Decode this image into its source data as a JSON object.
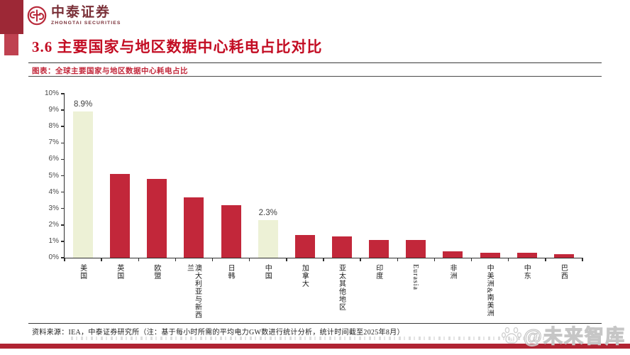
{
  "brand": {
    "name_cn": "中泰证券",
    "name_en": "ZHONGTAI SECURITIES",
    "logo_icon": "zhongtai-monogram-icon"
  },
  "header": {
    "title": "3.6 主要国家与地区数据中心耗电占比对比"
  },
  "chart_caption": "图表：全球主要国家与地区数据中心耗电占比",
  "chart_data": {
    "type": "bar",
    "title": "全球主要国家与地区数据中心耗电占比",
    "categories": [
      "美国",
      "英国",
      "欧盟",
      "澳大利亚与新西兰",
      "日韩",
      "中国",
      "加拿大",
      "亚太其他地区",
      "印度",
      "Eurasia",
      "非洲",
      "中美洲&南美洲",
      "中东",
      "巴西"
    ],
    "values": [
      8.9,
      5.1,
      4.8,
      3.7,
      3.2,
      2.3,
      1.4,
      1.3,
      1.1,
      1.1,
      0.4,
      0.3,
      0.3,
      0.2
    ],
    "unit": "%",
    "value_labels": {
      "0": "8.9%",
      "5": "2.3%"
    },
    "highlighted_indices": [
      0,
      5
    ],
    "ylim": [
      0,
      10
    ],
    "ytick_step": 1,
    "ytick_labels": [
      "0%",
      "1%",
      "2%",
      "3%",
      "4%",
      "5%",
      "6%",
      "7%",
      "8%",
      "9%",
      "10%"
    ],
    "xlabel": "",
    "ylabel": "",
    "grid": false,
    "legend": "none",
    "bar_color": "#c2273a",
    "highlight_color": "#edf1d6"
  },
  "footer": {
    "source": "资料来源：IEA，中泰证券研究所（注：基于每小时所需的平均电力GW数进行统计分析，统计时间截至2025年8月）"
  },
  "watermark": {
    "icon": "baidu-paw-icon",
    "icon_label": "du",
    "text": "@未来智库"
  },
  "colors": {
    "accent_red": "#c30d23",
    "bar_red": "#c2273a",
    "bar_highlight": "#edf1d6",
    "deco_dark_red": "#9d2836",
    "deco_light_red": "#bf4150",
    "bottom_bar_red": "#b02433"
  }
}
